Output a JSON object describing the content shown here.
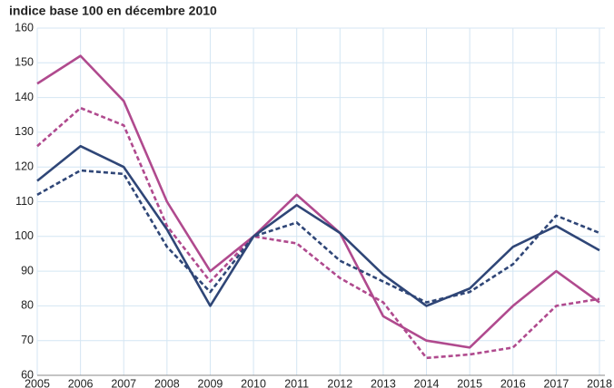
{
  "chart_data": {
    "type": "line",
    "title": "indice base 100 en décembre 2010",
    "categories": [
      "2005",
      "2006",
      "2007",
      "2008",
      "2009",
      "2010",
      "2011",
      "2012",
      "2013",
      "2014",
      "2015",
      "2016",
      "2017",
      "2018"
    ],
    "series": [
      {
        "color": "#b04a8e",
        "dashed": false,
        "values": [
          144,
          152,
          139,
          110,
          90,
          100,
          112,
          101,
          77,
          70,
          68,
          80,
          90,
          81
        ]
      },
      {
        "color": "#b04a8e",
        "dashed": true,
        "values": [
          126,
          137,
          132,
          103,
          87,
          100,
          98,
          88,
          81,
          65,
          66,
          68,
          80,
          82
        ]
      },
      {
        "color": "#2f4677",
        "dashed": false,
        "values": [
          116,
          126,
          120,
          102,
          80,
          100,
          109,
          101,
          89,
          80,
          85,
          97,
          103,
          96
        ]
      },
      {
        "color": "#2f4677",
        "dashed": true,
        "values": [
          112,
          119,
          118,
          97,
          84,
          100,
          104,
          93,
          87,
          81,
          84,
          92,
          106,
          101
        ]
      }
    ],
    "ylim": [
      60,
      160
    ],
    "yticks": [
      60,
      70,
      80,
      90,
      100,
      110,
      120,
      130,
      140,
      150,
      160
    ],
    "grid": true
  }
}
